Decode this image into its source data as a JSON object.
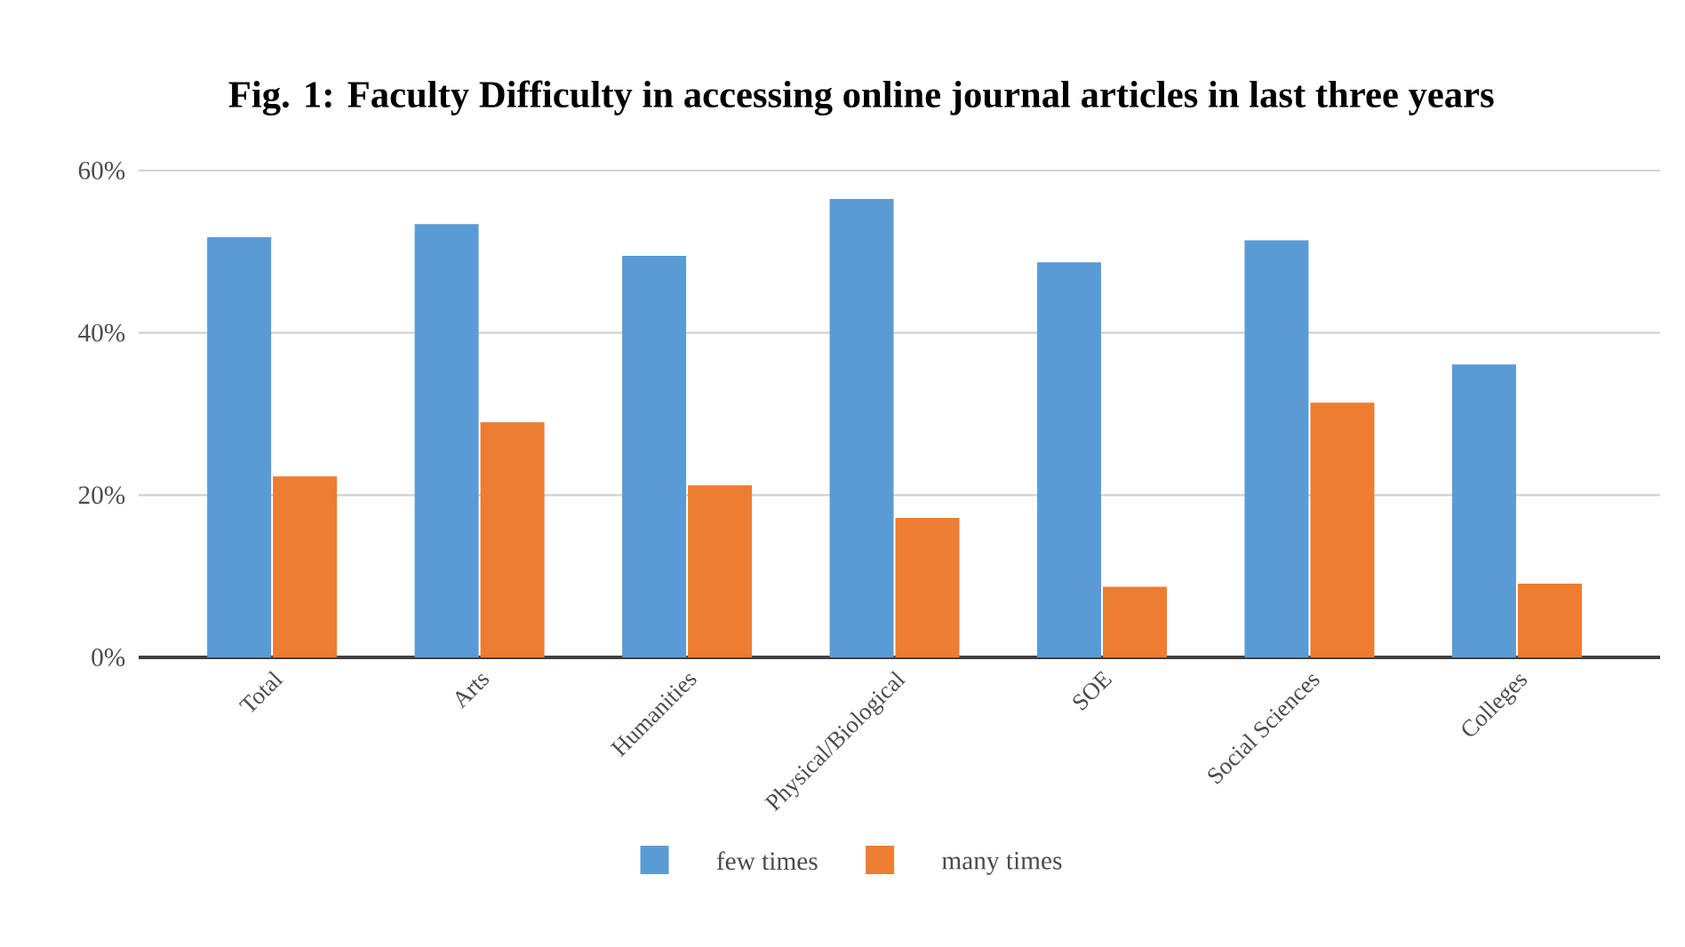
{
  "chart_data": {
    "type": "bar",
    "title": "Fig. 1: Faculty Difficulty in accessing online journal articles in last three years",
    "categories": [
      "Total",
      "Arts",
      "Humanities",
      "Physical/Biological",
      "SOE",
      "Social Sciences",
      "Colleges"
    ],
    "series": [
      {
        "name": "few times",
        "color": "#5b9bd5",
        "values": [
          51.8,
          53.4,
          49.5,
          56.5,
          48.7,
          51.4,
          36.1
        ]
      },
      {
        "name": "many times",
        "color": "#ed7d31",
        "values": [
          22.3,
          29.0,
          21.2,
          17.2,
          8.7,
          31.4,
          9.1
        ]
      }
    ],
    "ylim": [
      0,
      60
    ],
    "yticks": [
      {
        "value": 0,
        "label": "0%"
      },
      {
        "value": 20,
        "label": "20%"
      },
      {
        "value": 40,
        "label": "40%"
      },
      {
        "value": 60,
        "label": "60%"
      }
    ],
    "grid": "y",
    "legend": "bottom"
  }
}
